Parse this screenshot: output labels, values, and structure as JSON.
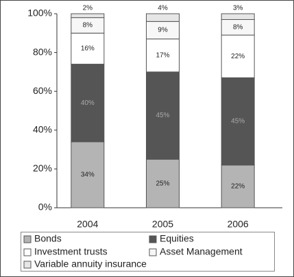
{
  "chart_data": {
    "type": "stacked-bar",
    "categories": [
      "2004",
      "2005",
      "2006"
    ],
    "series": [
      {
        "name": "Bonds",
        "color": "#b4b4b4",
        "values": [
          34,
          25,
          22
        ],
        "value_labels": [
          "34%",
          "25%",
          "22%"
        ]
      },
      {
        "name": "Equities",
        "color": "#555555",
        "values": [
          40,
          45,
          45
        ],
        "value_labels": [
          "40%",
          "45%",
          "45%"
        ]
      },
      {
        "name": "Investment trusts",
        "color": "#ffffff",
        "values": [
          16,
          17,
          22
        ],
        "value_labels": [
          "16%",
          "17%",
          "22%"
        ]
      },
      {
        "name": "Asset Management",
        "color": "#f7f7f7",
        "values": [
          8,
          9,
          8
        ],
        "value_labels": [
          "8%",
          "9%",
          "8%"
        ]
      },
      {
        "name": "Variable annuity insurance",
        "color": "#e6e6e6",
        "values": [
          2,
          4,
          3
        ],
        "value_labels": [
          "2%",
          "4%",
          "3%"
        ]
      }
    ],
    "ylim": [
      0,
      100
    ],
    "yticks": [
      {
        "value": 0,
        "label": "0%"
      },
      {
        "value": 20,
        "label": "20%"
      },
      {
        "value": 40,
        "label": "40%"
      },
      {
        "value": 60,
        "label": "60%"
      },
      {
        "value": 80,
        "label": "80%"
      },
      {
        "value": 100,
        "label": "100%"
      }
    ]
  }
}
